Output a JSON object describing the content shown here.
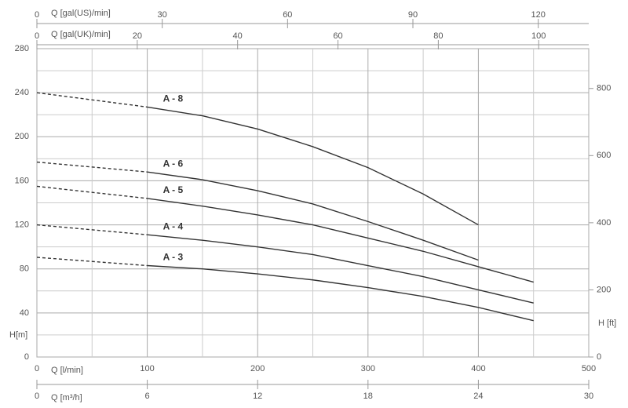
{
  "chart_data": {
    "type": "line",
    "xlabel": "Q [l/min]",
    "xlim": [
      0,
      500
    ],
    "xticks": [
      0,
      100,
      200,
      300,
      400,
      500
    ],
    "ylabel": "H[m]",
    "ylim": [
      0,
      280
    ],
    "yticks": [
      0,
      40,
      80,
      120,
      160,
      200,
      240,
      280
    ],
    "y2label": "H [ft]",
    "y2lim": [
      0,
      918.6
    ],
    "y2ticks": [
      0,
      200,
      400,
      600,
      800
    ],
    "extra_x_axes": [
      {
        "label": "Q [gal(US)/min]",
        "position": "top",
        "lim": [
          0,
          132.09
        ],
        "ticks": [
          0,
          30,
          60,
          90,
          120
        ]
      },
      {
        "label": "Q [gal(UK)/min]",
        "position": "top",
        "lim": [
          0,
          109.98
        ],
        "ticks": [
          0,
          20,
          40,
          60,
          80,
          100
        ]
      },
      {
        "label": "Q [m³/h]",
        "position": "bottom",
        "lim": [
          0,
          30
        ],
        "ticks": [
          0,
          6,
          12,
          18,
          24,
          30
        ]
      }
    ],
    "grid": true,
    "series": [
      {
        "name": "A - 8",
        "color": "#333333",
        "style": "solid",
        "x": [
          100,
          150,
          200,
          250,
          300,
          350,
          400
        ],
        "values": [
          227,
          219,
          207,
          191,
          172,
          148,
          120
        ]
      },
      {
        "color": "#333333",
        "style": "dashed",
        "x": [
          0,
          100
        ],
        "values": [
          240,
          227
        ]
      },
      {
        "name": "A - 6",
        "color": "#333333",
        "style": "solid",
        "x": [
          100,
          150,
          200,
          250,
          300,
          350,
          400
        ],
        "values": [
          168,
          161,
          151,
          139,
          123,
          106,
          88
        ]
      },
      {
        "color": "#333333",
        "style": "dashed",
        "x": [
          0,
          100
        ],
        "values": [
          177,
          168
        ]
      },
      {
        "name": "A - 5",
        "color": "#333333",
        "style": "solid",
        "x": [
          100,
          150,
          200,
          250,
          300,
          350,
          400,
          450
        ],
        "values": [
          144,
          137,
          129,
          120,
          108,
          96,
          82,
          68
        ]
      },
      {
        "color": "#333333",
        "style": "dashed",
        "x": [
          0,
          100
        ],
        "values": [
          155,
          144
        ]
      },
      {
        "name": "A - 4",
        "color": "#333333",
        "style": "solid",
        "x": [
          100,
          150,
          200,
          250,
          300,
          350,
          400,
          450
        ],
        "values": [
          111,
          106,
          100,
          93,
          83,
          73,
          61,
          49
        ]
      },
      {
        "color": "#333333",
        "style": "dashed",
        "x": [
          0,
          100
        ],
        "values": [
          120,
          111
        ]
      },
      {
        "name": "A - 3",
        "color": "#333333",
        "style": "solid",
        "x": [
          100,
          150,
          200,
          250,
          300,
          350,
          400,
          450
        ],
        "values": [
          83,
          80,
          75.5,
          70,
          63,
          55,
          45,
          33
        ]
      },
      {
        "color": "#333333",
        "style": "dashed",
        "x": [
          0,
          100
        ],
        "values": [
          90.5,
          83
        ]
      }
    ]
  }
}
